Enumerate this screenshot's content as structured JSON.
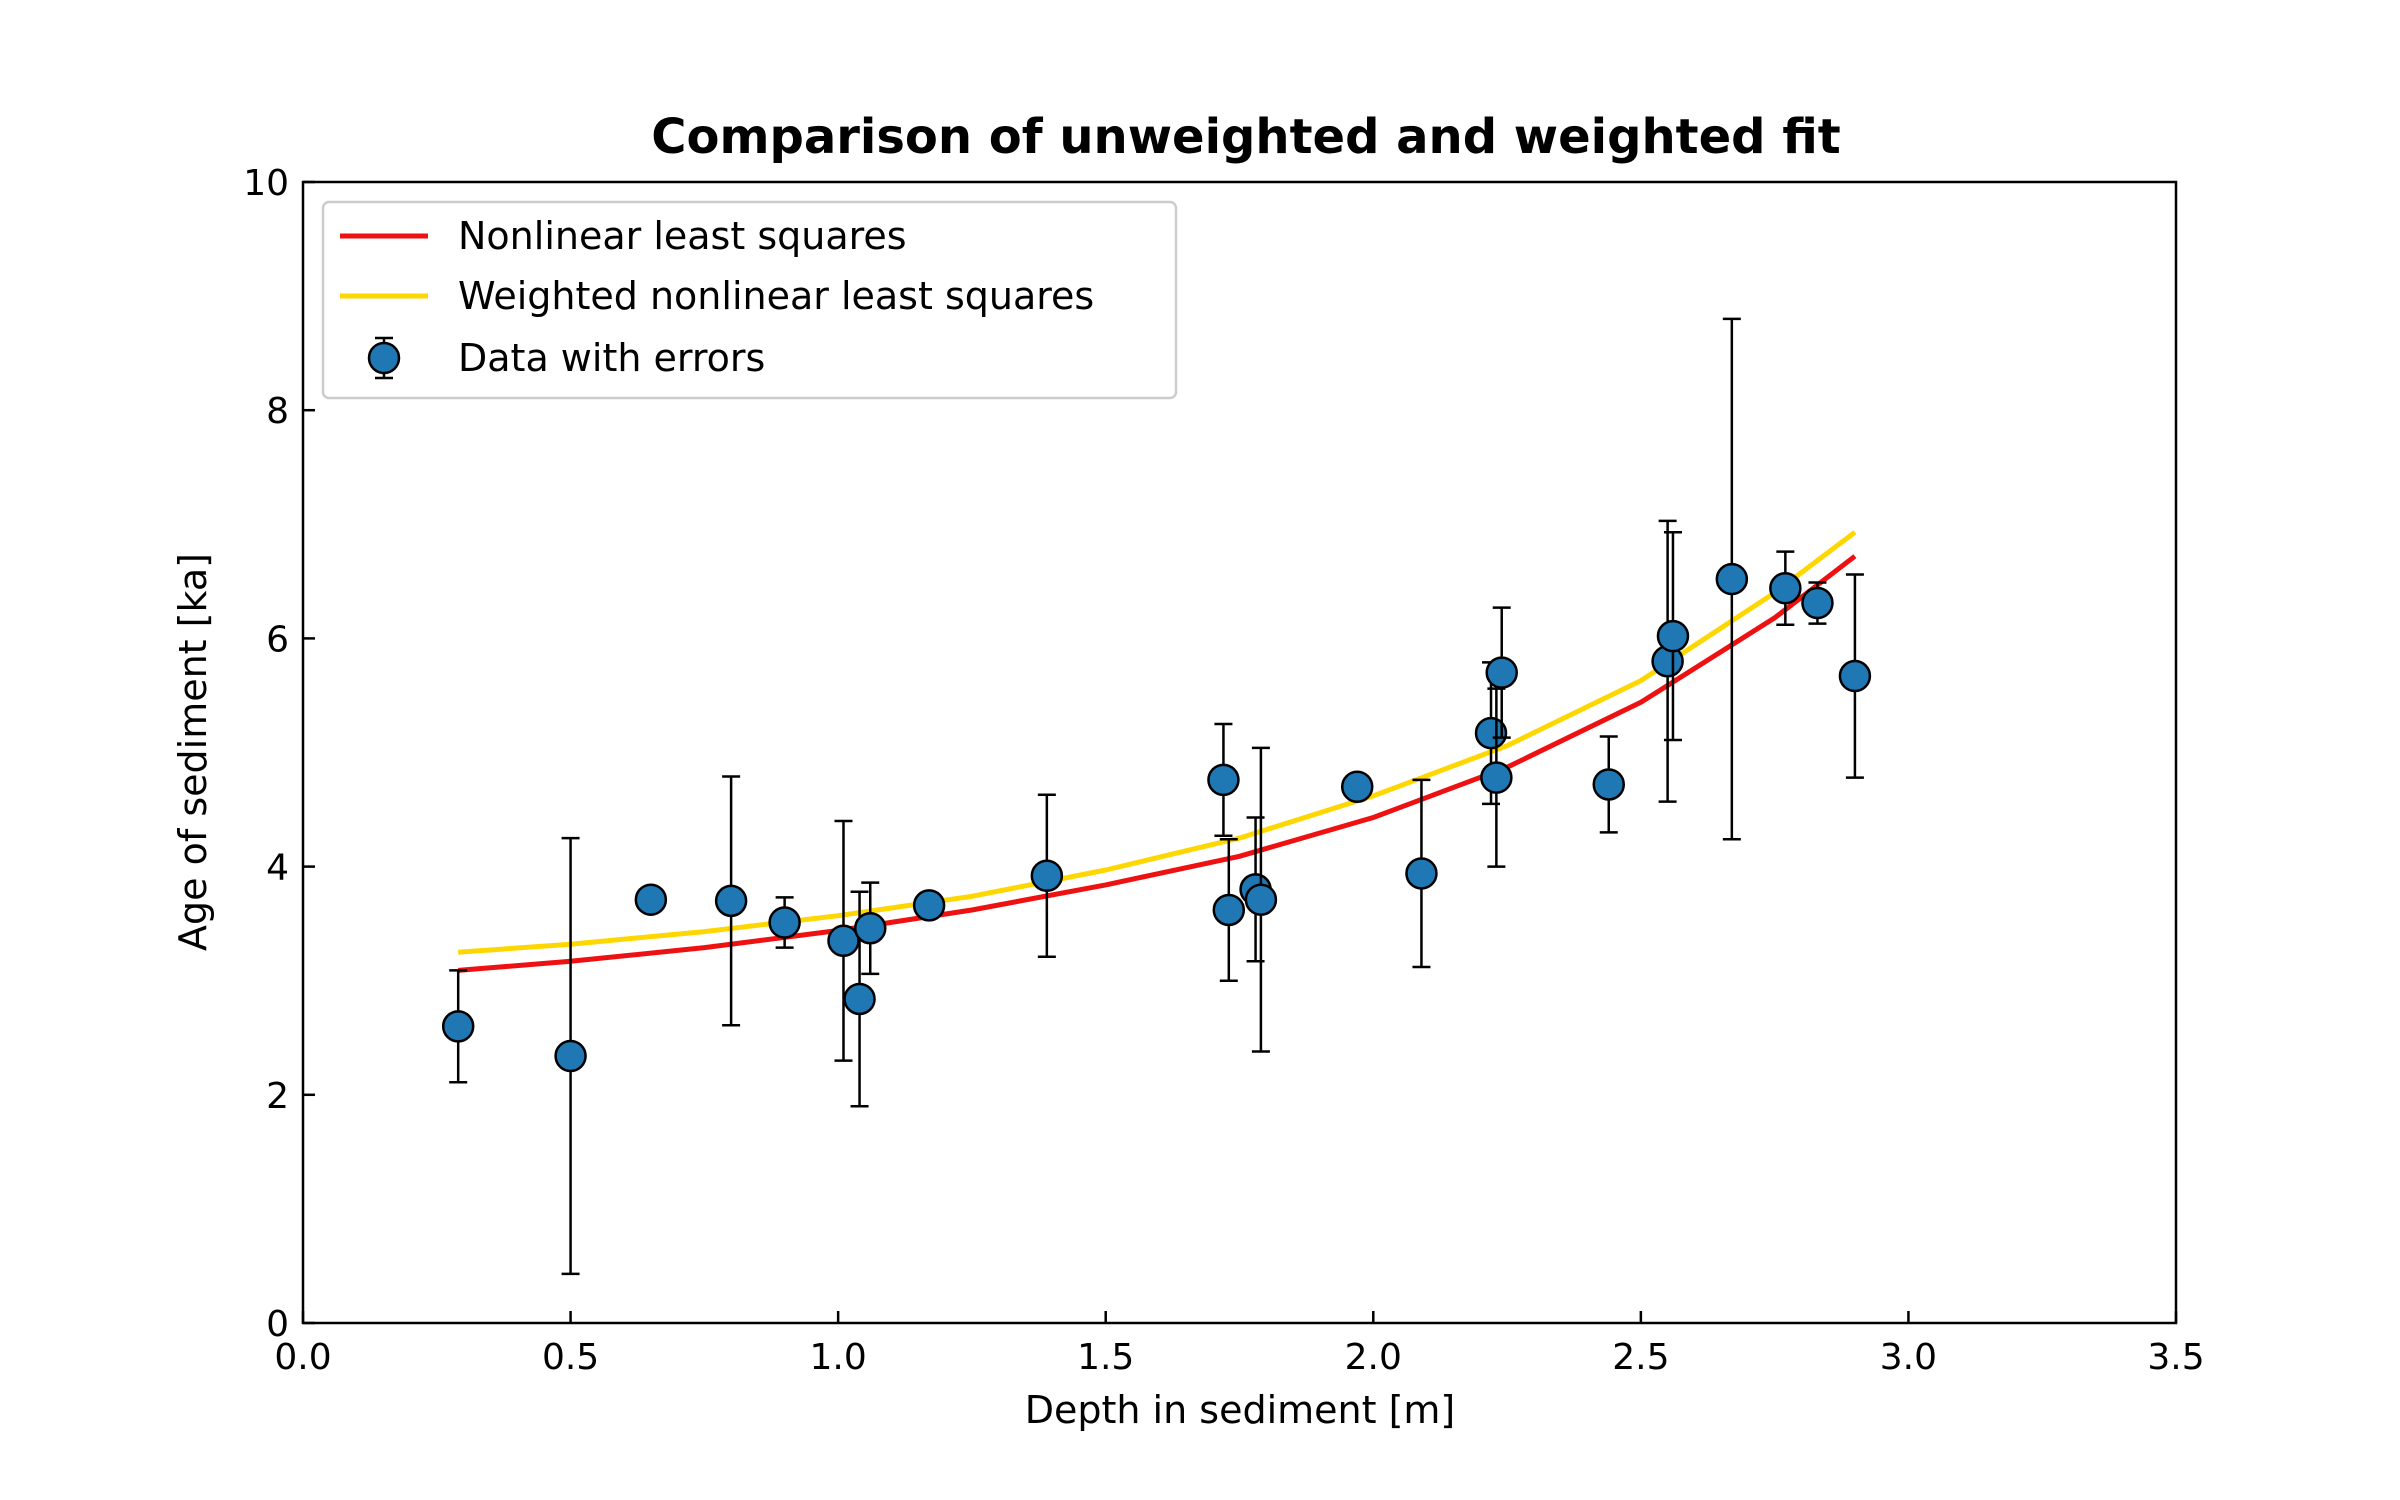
{
  "chart_data": {
    "type": "scatter",
    "title": "Comparison of unweighted and weighted fit",
    "xlabel": "Depth in sediment [m]",
    "ylabel": "Age of sediment [ka]",
    "xlim": [
      0.0,
      3.5
    ],
    "ylim": [
      0,
      10
    ],
    "xticks": [
      "0.0",
      "0.5",
      "1.0",
      "1.5",
      "2.0",
      "2.5",
      "3.0",
      "3.5"
    ],
    "yticks": [
      "0",
      "2",
      "4",
      "6",
      "8",
      "10"
    ],
    "grid": false,
    "legend_position": "top-left",
    "series": [
      {
        "name": "Nonlinear least squares",
        "kind": "line",
        "color": "#ee1111",
        "x": [
          0.29,
          0.5,
          0.75,
          1.0,
          1.25,
          1.5,
          1.75,
          2.0,
          2.25,
          2.5,
          2.75,
          2.9
        ],
        "y": [
          3.09,
          3.17,
          3.29,
          3.44,
          3.62,
          3.84,
          4.09,
          4.43,
          4.87,
          5.44,
          6.18,
          6.72
        ]
      },
      {
        "name": "Weighted nonlinear least squares",
        "kind": "line",
        "color": "#ffd700",
        "x": [
          0.29,
          0.5,
          0.75,
          1.0,
          1.25,
          1.5,
          1.75,
          2.0,
          2.25,
          2.5,
          2.75,
          2.9
        ],
        "y": [
          3.25,
          3.32,
          3.43,
          3.57,
          3.74,
          3.97,
          4.25,
          4.62,
          5.06,
          5.63,
          6.4,
          6.93
        ]
      },
      {
        "name": "Data with errors",
        "kind": "errorbar",
        "color": "#1f77b4",
        "points": [
          {
            "x": 0.29,
            "y": 2.6,
            "err": 0.49
          },
          {
            "x": 0.5,
            "y": 2.34,
            "err": 1.91
          },
          {
            "x": 0.65,
            "y": 3.71,
            "err": 0.06
          },
          {
            "x": 0.8,
            "y": 3.7,
            "err": 1.09
          },
          {
            "x": 0.9,
            "y": 3.51,
            "err": 0.22
          },
          {
            "x": 1.01,
            "y": 3.35,
            "err": 1.05
          },
          {
            "x": 1.04,
            "y": 2.84,
            "err": 0.94
          },
          {
            "x": 1.06,
            "y": 3.46,
            "err": 0.4
          },
          {
            "x": 1.17,
            "y": 3.66,
            "err": 0.05
          },
          {
            "x": 1.39,
            "y": 3.92,
            "err": 0.71
          },
          {
            "x": 1.72,
            "y": 4.76,
            "err": 0.49
          },
          {
            "x": 1.73,
            "y": 3.62,
            "err": 0.62
          },
          {
            "x": 1.78,
            "y": 3.8,
            "err": 0.63
          },
          {
            "x": 1.79,
            "y": 3.71,
            "err": 1.33
          },
          {
            "x": 1.97,
            "y": 4.7,
            "err": 0.03
          },
          {
            "x": 2.09,
            "y": 3.94,
            "err": 0.82
          },
          {
            "x": 2.22,
            "y": 5.17,
            "err": 0.62
          },
          {
            "x": 2.23,
            "y": 4.78,
            "err": 0.78
          },
          {
            "x": 2.24,
            "y": 5.7,
            "err": 0.57
          },
          {
            "x": 2.44,
            "y": 4.72,
            "err": 0.42
          },
          {
            "x": 2.55,
            "y": 5.8,
            "err": 1.23
          },
          {
            "x": 2.56,
            "y": 6.02,
            "err": 0.91
          },
          {
            "x": 2.67,
            "y": 6.52,
            "err": 2.28
          },
          {
            "x": 2.77,
            "y": 6.44,
            "err": 0.32
          },
          {
            "x": 2.83,
            "y": 6.31,
            "err": 0.18
          },
          {
            "x": 2.9,
            "y": 5.67,
            "err": 0.89
          }
        ]
      }
    ]
  }
}
